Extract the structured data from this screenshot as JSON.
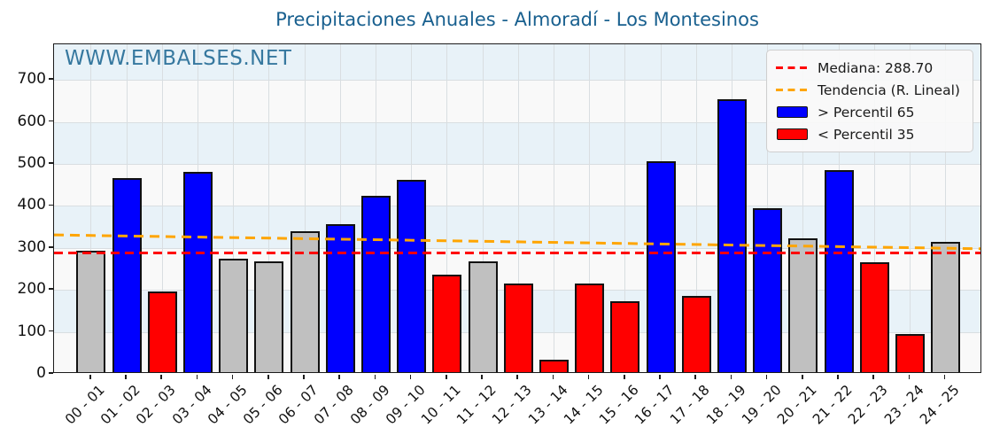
{
  "header": {
    "title": "Precipitaciones Anuales - Almoradí - Los Montesinos",
    "watermark": "WWW.EMBALSES.NET"
  },
  "chart_data": {
    "type": "bar",
    "title": "Precipitaciones Anuales - Almoradí - Los Montesinos",
    "watermark": "WWW.EMBALSES.NET",
    "categories": [
      "00 - 01",
      "01 - 02",
      "02 - 03",
      "03 - 04",
      "04 - 05",
      "05 - 06",
      "06 - 07",
      "07 - 08",
      "08 - 09",
      "09 - 10",
      "10 - 11",
      "11 - 12",
      "12 - 13",
      "13 - 14",
      "14 - 15",
      "15 - 16",
      "16 - 17",
      "17 - 18",
      "18 - 19",
      "19 - 20",
      "20 - 21",
      "21 - 22",
      "22 - 23",
      "23 - 24",
      "24 - 25"
    ],
    "values": [
      288.7,
      462,
      193,
      476,
      270,
      264,
      336,
      352,
      420,
      459,
      232,
      264,
      210,
      30,
      211,
      168,
      503,
      182,
      650,
      391,
      318,
      481,
      261,
      90,
      311
    ],
    "bar_classes": [
      "mid",
      "high",
      "low",
      "high",
      "mid",
      "mid",
      "mid",
      "high",
      "high",
      "high",
      "low",
      "mid",
      "low",
      "low",
      "low",
      "low",
      "high",
      "low",
      "high",
      "high",
      "mid",
      "high",
      "low",
      "low",
      "mid"
    ],
    "ylim": [
      0,
      785
    ],
    "yticks": [
      0,
      100,
      200,
      300,
      400,
      500,
      600,
      700
    ],
    "grid": true,
    "median": {
      "label": "Mediana: 288.70",
      "value": 288.7
    },
    "trend": {
      "label": "Tendencia (R. Lineal)",
      "start": 331,
      "end": 298
    },
    "legend": {
      "position": "upper right",
      "entries": [
        {
          "label": "Mediana: 288.70",
          "marker": "dashed-line",
          "color": "#ff0000"
        },
        {
          "label": "Tendencia (R. Lineal)",
          "marker": "dashed-line",
          "color": "#ffa500"
        },
        {
          "label": "> Percentil 65",
          "marker": "patch",
          "color": "#0000ff"
        },
        {
          "label": "< Percentil 35",
          "marker": "patch",
          "color": "#ff0000"
        }
      ]
    },
    "colors": {
      "high": "#0000ff",
      "low": "#ff0000",
      "mid": "#c0c0c0",
      "median_line": "#ff0000",
      "trend_line": "#ffa500",
      "band": "#e8f2f8",
      "plot_base": "#f9f9f9",
      "title": "#19608f",
      "watermark": "#36789f"
    }
  }
}
